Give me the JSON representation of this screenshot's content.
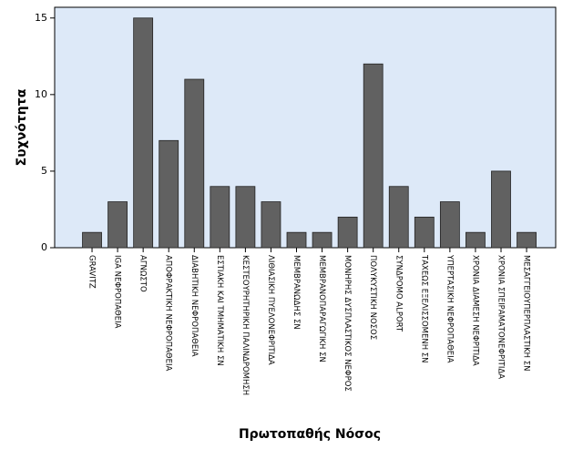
{
  "chart_data": {
    "type": "bar",
    "xlabel": "Πρωτοπαθής Νόσος",
    "ylabel": "Συχνότητα",
    "categories": [
      "GRAVITZ",
      "IGA ΝΕΦΡΟΠΑΘΕΙΑ",
      "ΑΓΝΩΣΤΟ",
      "ΑΠΟΦΡΑΚΤΙΚΗ ΝΕΦΡΟΠΑΘΕΙΑ",
      "ΔΙΑΒΗΤΙΚΗ ΝΕΦΡΟΠΑΘΕΙΑ",
      "ΕΣΤΙΑΚΗ ΚΑΙ ΤΜΗΜΑΤΙΚΗ ΣΝ",
      "ΚΕΣΤΕΟΥΡΗΤΗΡΙΚΗ ΠΑΛΙΝΔΡΟΜΗΣΗ",
      "ΛΙΘΙΑΣΙΚΗ ΠΥΕΛΟΝΕΦΡΙΤΙΔΑ",
      "ΜΕΜΒΡΑΝΩΔΗΣ ΣΝ",
      "ΜΕΜΒΡΑΝΟΠΑΡΑΓΩΓΙΚΗ ΣΝ",
      "ΜΟΝΗΡΗΣ ΔΥΣΠΛΑΣΤΙΚΟΣ ΝΕΦΡΟΣ",
      "ΠΟΛΥΚΥΣΤΙΚΗ ΝΟΣΟΣ",
      "ΣΥΝΔΡΟΜΟ ALPORT",
      "ΤΑΧΕΩΣ ΕΞΕΛΙΣΣΟΜΕΝΗ ΣΝ",
      "ΥΠΕΡΤΑΣΙΚΗ ΝΕΦΡΟΠΑΘΕΙΑ",
      "ΧΡΟΝΙΑ ΔΙΑΜΕΣΗ ΝΕΦΡΙΤΙΔΑ",
      "ΧΡΟΝΙΑ ΣΠΕΙΡΑΜΑΤΟΝΕΦΡΙΤΙΔΑ",
      "ΜΕΣΑΓΓΕΙΟΥΠΕΡΠΛΑΣΤΙΚΗ ΣΝ"
    ],
    "values": [
      1,
      3,
      15,
      7,
      11,
      4,
      4,
      3,
      1,
      1,
      2,
      12,
      4,
      2,
      3,
      1,
      5,
      1
    ],
    "color": "#616161",
    "ylim": [
      0,
      15.7
    ],
    "yticks": [
      0,
      5,
      10,
      15
    ]
  }
}
